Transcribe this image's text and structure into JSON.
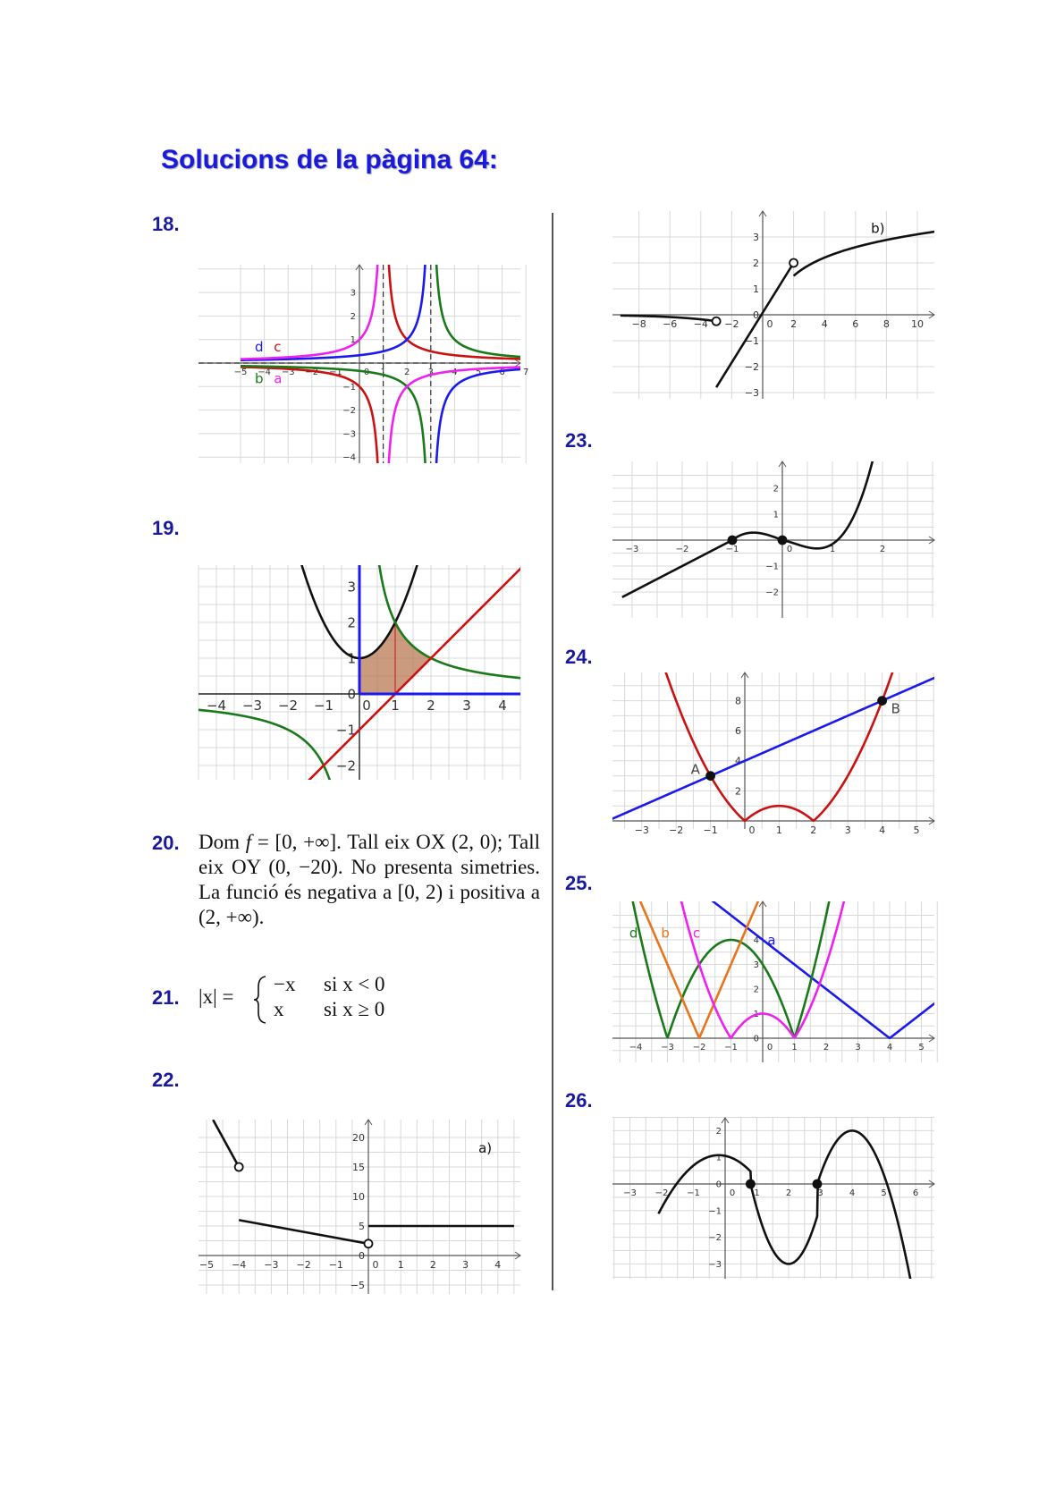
{
  "title": "Solucions de la pàgina 64:",
  "exercise_numbers": [
    "18.",
    "19.",
    "20.",
    "21.",
    "22.",
    "23.",
    "24.",
    "25.",
    "26."
  ],
  "ex20": {
    "text_1": "Dom",
    "f": "f",
    "eq": " = [0, +∞]. Tall eix OX (2, 0); Tall eix OY (0, −20). No presenta simetries. La funció és negativa a [0, 2) i positiva a (2, +∞)."
  },
  "ex21": {
    "lhs": "|x| =",
    "case1_expr": "−x",
    "case1_cond": "si x < 0",
    "case2_expr": "x",
    "case2_cond": "si x ≥ 0"
  },
  "colors": {
    "title": "#1a1adc",
    "numbers": "#1a1a9e",
    "red": "#cc1111",
    "green": "#1a7a1a",
    "blue": "#1a1aee",
    "magenta": "#ee22ee",
    "orange": "#e8741c",
    "shade": "#b97a56"
  },
  "chart_data": [
    {
      "id": "ex18",
      "type": "line",
      "xlim": [
        -5,
        7
      ],
      "ylim": [
        -4,
        4
      ],
      "grid": true,
      "x_ticks": [
        -5,
        -4,
        -3,
        -2,
        -1,
        0,
        1,
        2,
        3,
        4,
        5,
        6,
        7
      ],
      "y_ticks": [
        -4,
        -3,
        -2,
        -1,
        1,
        2,
        3
      ],
      "legend": [
        {
          "name": "d",
          "color": "#1a1aee"
        },
        {
          "name": "c",
          "color": "#cc1111"
        },
        {
          "name": "b",
          "color": "#1a7a1a"
        },
        {
          "name": "a",
          "color": "#ee22ee"
        }
      ],
      "asymptotes_x": [
        1,
        3
      ],
      "asymptote_y": 0
    },
    {
      "id": "ex19",
      "type": "line",
      "xlim": [
        -4.5,
        4.5
      ],
      "ylim": [
        -2.2,
        3.8
      ],
      "grid": true,
      "x_ticks": [
        -4,
        -3,
        -2,
        -1,
        0,
        1,
        2,
        3,
        4
      ],
      "y_ticks": [
        -2,
        -1,
        0,
        1,
        2,
        3
      ],
      "shaded_region": "between y=x²+1, y=2/x, y=x-1 and x=0"
    },
    {
      "id": "ex22a",
      "type": "line",
      "label": "a)",
      "xlim": [
        -5,
        4.5
      ],
      "ylim": [
        -6,
        22
      ],
      "grid": true,
      "x_ticks": [
        -5,
        -4,
        -3,
        -2,
        -1,
        0,
        1,
        2,
        3,
        4
      ],
      "y_ticks": [
        -5,
        0,
        5,
        10,
        15,
        20
      ],
      "segments": [
        {
          "x": [
            -4.8,
            -4
          ],
          "y": [
            23,
            15
          ],
          "end": "open"
        },
        {
          "x": [
            -4,
            0
          ],
          "y": [
            6,
            2
          ],
          "end": "open"
        },
        {
          "x": [
            0,
            4.5
          ],
          "y": [
            5,
            5
          ]
        }
      ]
    },
    {
      "id": "ex22b",
      "type": "line",
      "label": "b)",
      "xlim": [
        -9,
        11
      ],
      "ylim": [
        -3.5,
        3.8
      ],
      "grid": true,
      "x_ticks": [
        -8,
        -6,
        -4,
        -2,
        0,
        2,
        4,
        6,
        8,
        10
      ],
      "y_ticks": [
        -3,
        -2,
        -1,
        0,
        1,
        2,
        3
      ],
      "segments": [
        {
          "x": [
            -9,
            -3
          ],
          "y": [
            0,
            -0.25
          ],
          "end": "open"
        },
        {
          "x": [
            -3,
            2
          ],
          "y": [
            -2.8,
            2
          ],
          "end": "open"
        },
        {
          "x": [
            2,
            11
          ],
          "y": [
            1.5,
            3.4
          ]
        }
      ]
    },
    {
      "id": "ex23",
      "type": "line",
      "xlim": [
        -3.3,
        3.1
      ],
      "ylim": [
        -2.6,
        2.9
      ],
      "grid": true,
      "x_ticks": [
        -3,
        -2,
        -1,
        0,
        1,
        2
      ],
      "y_ticks": [
        -2,
        -1,
        1,
        2
      ],
      "points": [
        [
          -1,
          0
        ],
        [
          0,
          0
        ]
      ]
    },
    {
      "id": "ex24",
      "type": "line",
      "xlim": [
        -3.8,
        5.6
      ],
      "ylim": [
        -0.7,
        9.8
      ],
      "grid": true,
      "x_ticks": [
        -3,
        -2,
        -1,
        0,
        1,
        2,
        3,
        4,
        5
      ],
      "y_ticks": [
        2,
        4,
        6,
        8
      ],
      "series": [
        {
          "type": "y = x + 4"
        },
        {
          "type": "y = |x² - 2x|"
        }
      ],
      "points": [
        {
          "name": "A",
          "x": -1,
          "y": 3
        },
        {
          "name": "B",
          "x": 4,
          "y": 8
        }
      ]
    },
    {
      "id": "ex25",
      "type": "line",
      "xlim": [
        -4.7,
        5.5
      ],
      "ylim": [
        -0.6,
        5
      ],
      "grid": true,
      "x_ticks": [
        -4,
        -3,
        -2,
        -1,
        0,
        1,
        2,
        3,
        4,
        5
      ],
      "y_ticks": [
        0,
        1,
        2,
        3,
        4
      ],
      "legend": [
        {
          "name": "d",
          "color": "#1a7a1a"
        },
        {
          "name": "b",
          "color": "#e8741c"
        },
        {
          "name": "c",
          "color": "#ee22ee"
        },
        {
          "name": "a",
          "color": "#1a1aee"
        }
      ]
    },
    {
      "id": "ex26",
      "type": "line",
      "xlim": [
        -3.6,
        6.7
      ],
      "ylim": [
        -3.6,
        2.6
      ],
      "grid": true,
      "x_ticks": [
        -3,
        -2,
        -1,
        0,
        1,
        2,
        3,
        4,
        5,
        6
      ],
      "y_ticks": [
        -3,
        -2,
        -1,
        0,
        1,
        2
      ],
      "points": [
        [
          0.8,
          0
        ],
        [
          2.9,
          0
        ]
      ]
    }
  ]
}
